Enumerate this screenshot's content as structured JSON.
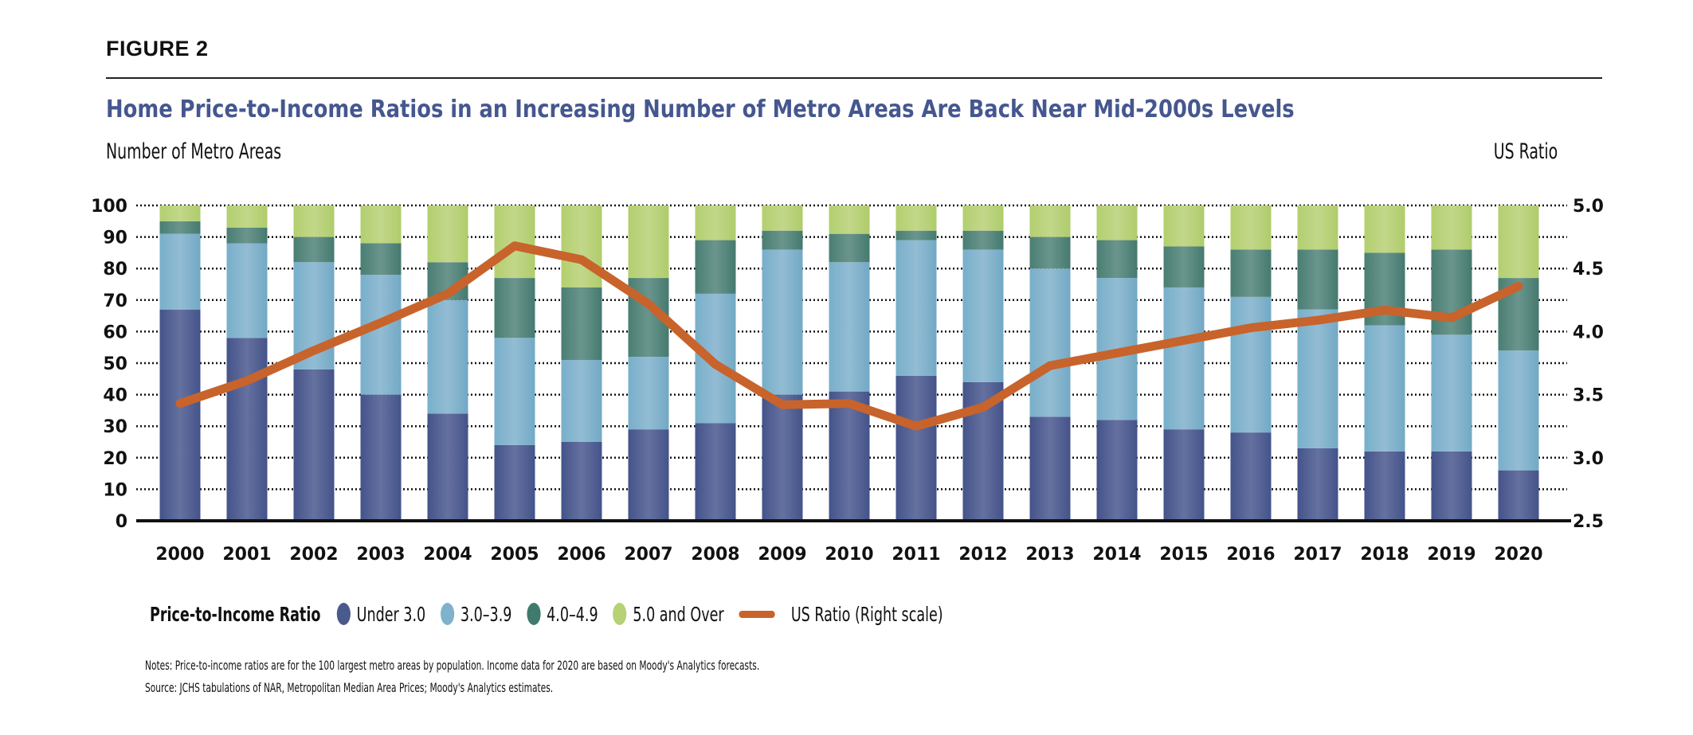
{
  "figure_label": "FIGURE 2",
  "colors": {
    "under_3": "#4b5a8c",
    "r3_39": "#7fb2cc",
    "r4_49": "#4f8479",
    "r5_over": "#b6d274",
    "us_ratio": "#c8632c",
    "title": "#45578f"
  },
  "legend": {
    "title": "Price-to-Income Ratio",
    "items": [
      {
        "label": "Under 3.0",
        "key": "under_3"
      },
      {
        "label": "3.0–3.9",
        "key": "r3_39"
      },
      {
        "label": "4.0–4.9",
        "key": "r4_49"
      },
      {
        "label": "5.0 and Over",
        "key": "r5_over"
      }
    ],
    "line_label": "US Ratio (Right scale)"
  },
  "notes": {
    "line1": "Notes: Price-to-income ratios are for the 100 largest metro areas by population. Income data for 2020 are based on Moody's Analytics forecasts.",
    "line2": "Source: JCHS tabulations of NAR, Metropolitan Median Area Prices; Moody's Analytics estimates."
  },
  "chart_data": {
    "type": "bar",
    "stacked": true,
    "title": "Home Price-to-Income Ratios in an Increasing Number of Metro Areas Are Back Near Mid-2000s Levels",
    "xlabel": "",
    "ylabel": "Number of Metro Areas",
    "ylabel_right": "US Ratio",
    "ylim": [
      0,
      100
    ],
    "ylim_right": [
      2.5,
      5.0
    ],
    "yticks": [
      "0",
      "10",
      "20",
      "30",
      "40",
      "50",
      "60",
      "70",
      "80",
      "90",
      "100"
    ],
    "yticks_right": [
      "2.5",
      "3.0",
      "3.5",
      "4.0",
      "4.5",
      "5.0"
    ],
    "grid": true,
    "legend_position": "bottom",
    "categories": [
      "2000",
      "2001",
      "2002",
      "2003",
      "2004",
      "2005",
      "2006",
      "2007",
      "2008",
      "2009",
      "2010",
      "2011",
      "2012",
      "2013",
      "2014",
      "2015",
      "2016",
      "2017",
      "2018",
      "2019",
      "2020"
    ],
    "series": [
      {
        "name": "Under 3.0",
        "key": "under_3",
        "values": [
          67,
          58,
          48,
          40,
          34,
          24,
          25,
          29,
          31,
          40,
          41,
          46,
          44,
          33,
          32,
          29,
          28,
          23,
          22,
          22,
          16
        ]
      },
      {
        "name": "3.0–3.9",
        "key": "r3_39",
        "values": [
          24,
          30,
          34,
          38,
          36,
          34,
          26,
          23,
          41,
          46,
          41,
          43,
          42,
          47,
          45,
          45,
          43,
          44,
          40,
          37,
          38
        ]
      },
      {
        "name": "4.0–4.9",
        "key": "r4_49",
        "values": [
          4,
          5,
          8,
          10,
          12,
          19,
          23,
          25,
          17,
          6,
          9,
          3,
          6,
          10,
          12,
          13,
          15,
          19,
          23,
          27,
          23
        ]
      },
      {
        "name": "5.0 and Over",
        "key": "r5_over",
        "values": [
          5,
          7,
          10,
          12,
          18,
          23,
          26,
          23,
          11,
          8,
          9,
          8,
          8,
          10,
          11,
          13,
          14,
          14,
          15,
          14,
          23
        ]
      }
    ],
    "line_series": {
      "name": "US Ratio (Right scale)",
      "axis": "right",
      "type": "line",
      "values": [
        3.43,
        3.61,
        3.85,
        4.07,
        4.3,
        4.68,
        4.57,
        4.22,
        3.74,
        3.42,
        3.43,
        3.25,
        3.4,
        3.73,
        3.83,
        3.93,
        4.03,
        4.09,
        4.17,
        4.11,
        4.36
      ]
    }
  }
}
